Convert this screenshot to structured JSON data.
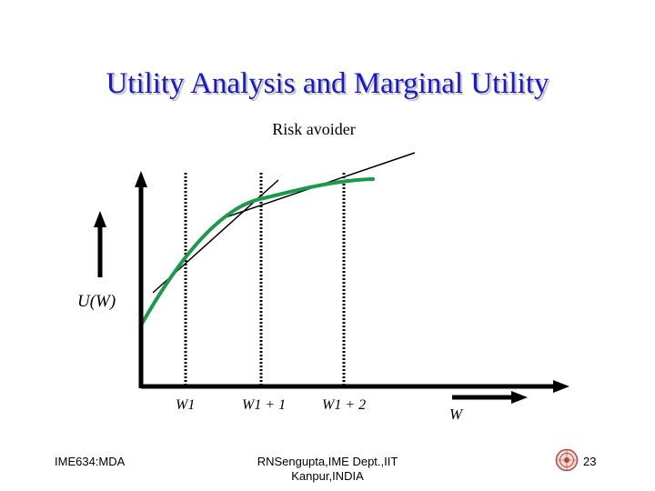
{
  "slide": {
    "title": "Utility Analysis and Marginal Utility",
    "subtitle": "Risk avoider"
  },
  "diagram": {
    "y_axis_label": "U(W)",
    "x_axis_label": "W",
    "ticks": [
      "W1",
      "W1 + 1",
      "W1 + 2"
    ],
    "curve_color": "#1a9a4a",
    "axis_color": "#000000"
  },
  "footer": {
    "left": "IME634:MDA",
    "center_line1": "RNSengupta,IME Dept.,IIT",
    "center_line2": "Kanpur,INDIA",
    "page_number": "23"
  }
}
